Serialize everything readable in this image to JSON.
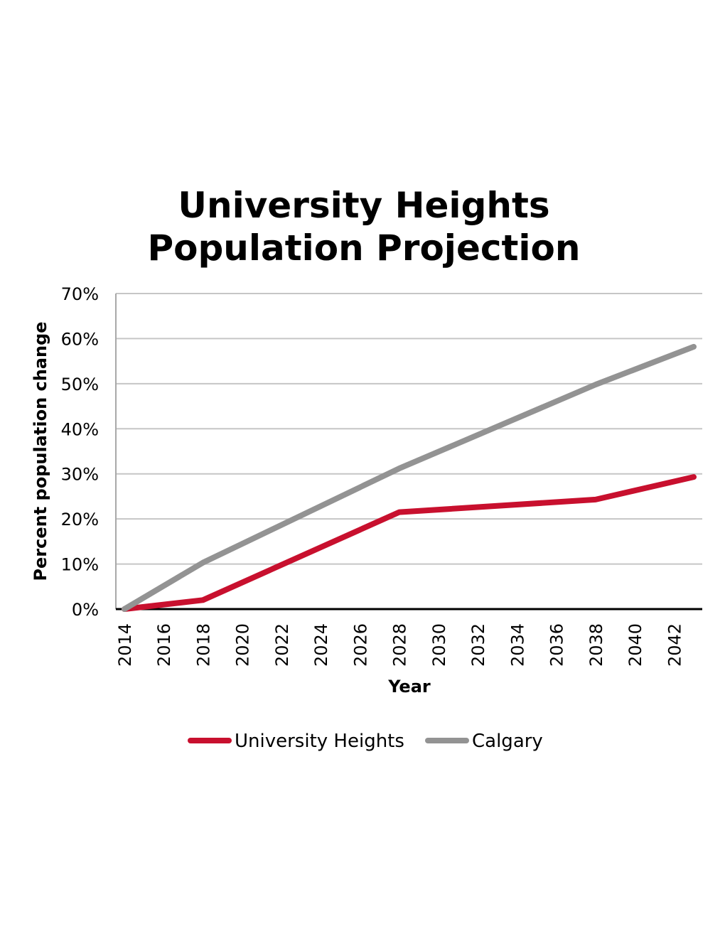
{
  "chart_data": {
    "type": "line",
    "title_lines": [
      "University Heights",
      "Population Projection"
    ],
    "xlabel": "Year",
    "ylabel": "Percent population change",
    "x_ticks": [
      "2014",
      "2016",
      "2018",
      "2020",
      "2022",
      "2024",
      "2026",
      "2028",
      "2030",
      "2032",
      "2034",
      "2036",
      "2038",
      "2040",
      "2042"
    ],
    "xlim": [
      2014,
      2043
    ],
    "ylim": [
      0,
      70
    ],
    "y_ticks": [
      0,
      10,
      20,
      30,
      40,
      50,
      60,
      70
    ],
    "y_tick_labels": [
      "0%",
      "10%",
      "20%",
      "30%",
      "40%",
      "50%",
      "60%",
      "70%"
    ],
    "grid": true,
    "legend_position": "bottom",
    "series": [
      {
        "name": "University Heights",
        "color": "#c8102e",
        "x": [
          2014,
          2018,
          2028,
          2038,
          2043
        ],
        "values": [
          0,
          2,
          21.5,
          24.3,
          29.3
        ]
      },
      {
        "name": "Calgary",
        "color": "#939393",
        "x": [
          2014,
          2018,
          2028,
          2038,
          2043
        ],
        "values": [
          0,
          10.3,
          31.2,
          49.8,
          58.2
        ]
      }
    ]
  }
}
